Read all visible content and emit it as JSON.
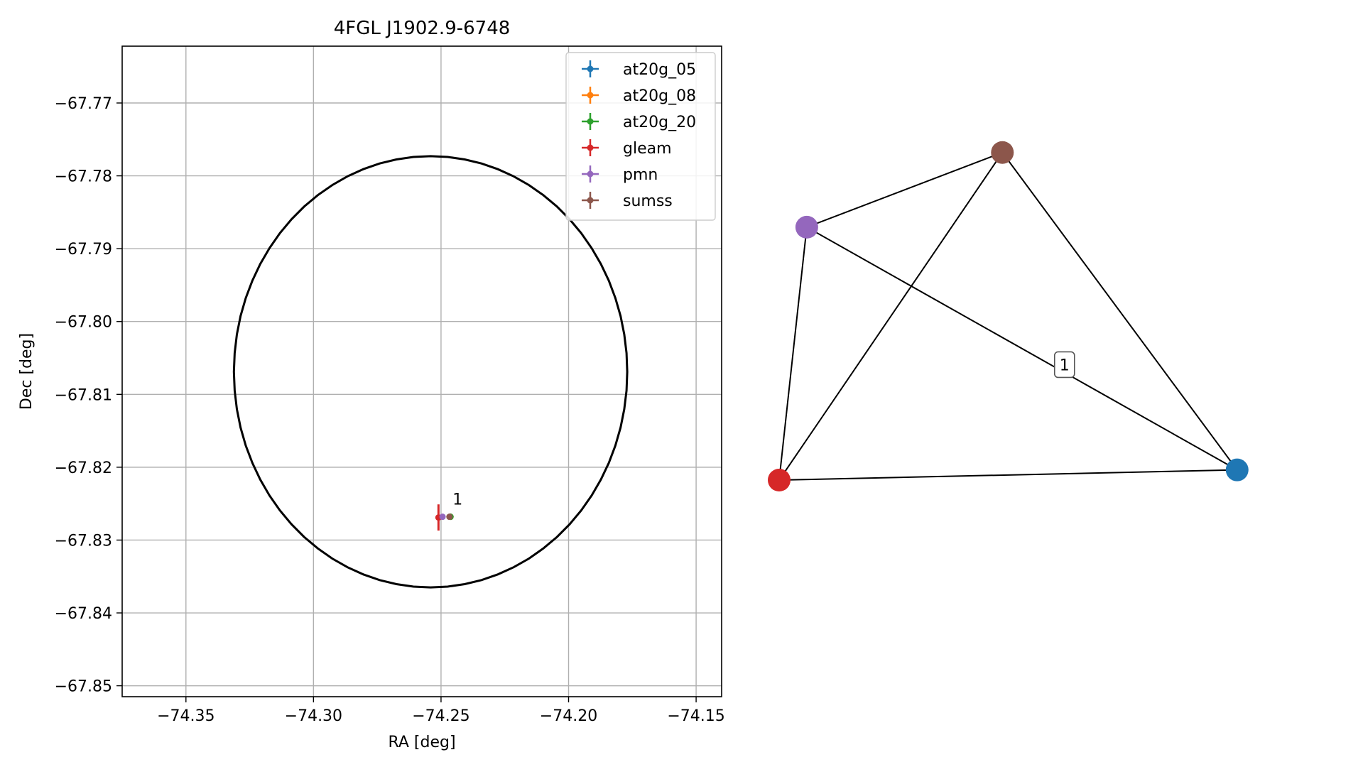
{
  "chart_data": [
    {
      "type": "scatter",
      "title": "4FGL J1902.9-6748",
      "xlabel": "RA [deg]",
      "ylabel": "Dec [deg]",
      "xlim": [
        -74.375,
        -74.14
      ],
      "ylim": [
        -67.8515,
        -67.7622
      ],
      "grid": true,
      "legend_position": "top-right",
      "xticks": [
        -74.35,
        -74.3,
        -74.25,
        -74.2,
        -74.15
      ],
      "xtick_labels": [
        "−74.35",
        "−74.30",
        "−74.25",
        "−74.20",
        "−74.15"
      ],
      "yticks": [
        -67.77,
        -67.78,
        -67.79,
        -67.8,
        -67.81,
        -67.82,
        -67.83,
        -67.84,
        -67.85
      ],
      "ytick_labels": [
        "−67.77",
        "−67.78",
        "−67.79",
        "−67.80",
        "−67.81",
        "−67.82",
        "−67.83",
        "−67.84",
        "−67.85"
      ],
      "ellipse": {
        "center": [
          -74.2541,
          -67.8069
        ],
        "ra_halfwidth": 0.0771,
        "dec_halfheight": 0.0296,
        "color": "#000000"
      },
      "series": [
        {
          "name": "at20g_05",
          "color": "#1f77b4",
          "x": [
            -74.2463
          ],
          "y": [
            -67.8268
          ],
          "xerr": 0.0004,
          "yerr": 0.0001
        },
        {
          "name": "at20g_08",
          "color": "#ff7f0e",
          "x": [
            -74.2463
          ],
          "y": [
            -67.8268
          ],
          "xerr": 0.0004,
          "yerr": 0.0001
        },
        {
          "name": "at20g_20",
          "color": "#2ca02c",
          "x": [
            -74.2463
          ],
          "y": [
            -67.8268
          ],
          "xerr": 0.0004,
          "yerr": 0.0001
        },
        {
          "name": "gleam",
          "color": "#d62728",
          "x": [
            -74.251
          ],
          "y": [
            -67.8269
          ],
          "xerr": 0.0002,
          "yerr": 0.0018
        },
        {
          "name": "pmn",
          "color": "#9467bd",
          "x": [
            -74.2494
          ],
          "y": [
            -67.8268
          ],
          "xerr": 0.0003,
          "yerr": 0.0002
        },
        {
          "name": "sumss",
          "color": "#8c564b",
          "x": [
            -74.2467
          ],
          "y": [
            -67.8268
          ],
          "xerr": 0.0004,
          "yerr": 0.0002
        }
      ],
      "annotations": [
        {
          "text": "1",
          "x": -74.2463,
          "y": -67.8255
        }
      ]
    },
    {
      "type": "graph",
      "nodes": [
        {
          "id": "sumss",
          "color": "#8c564b",
          "x": 0.485,
          "y": 0.965
        },
        {
          "id": "pmn",
          "color": "#9467bd",
          "x": 0.06,
          "y": 0.745
        },
        {
          "id": "at20g",
          "color": "#1f77b4",
          "x": 0.995,
          "y": 0.03
        },
        {
          "id": "gleam",
          "color": "#d62728",
          "x": 0.0,
          "y": 0.0
        }
      ],
      "edges": [
        [
          "pmn",
          "sumss"
        ],
        [
          "sumss",
          "at20g"
        ],
        [
          "sumss",
          "gleam"
        ],
        [
          "pmn",
          "gleam"
        ],
        [
          "pmn",
          "at20g"
        ],
        [
          "gleam",
          "at20g"
        ]
      ],
      "label": {
        "text": "1",
        "x": 0.62,
        "y": 0.34
      }
    }
  ]
}
